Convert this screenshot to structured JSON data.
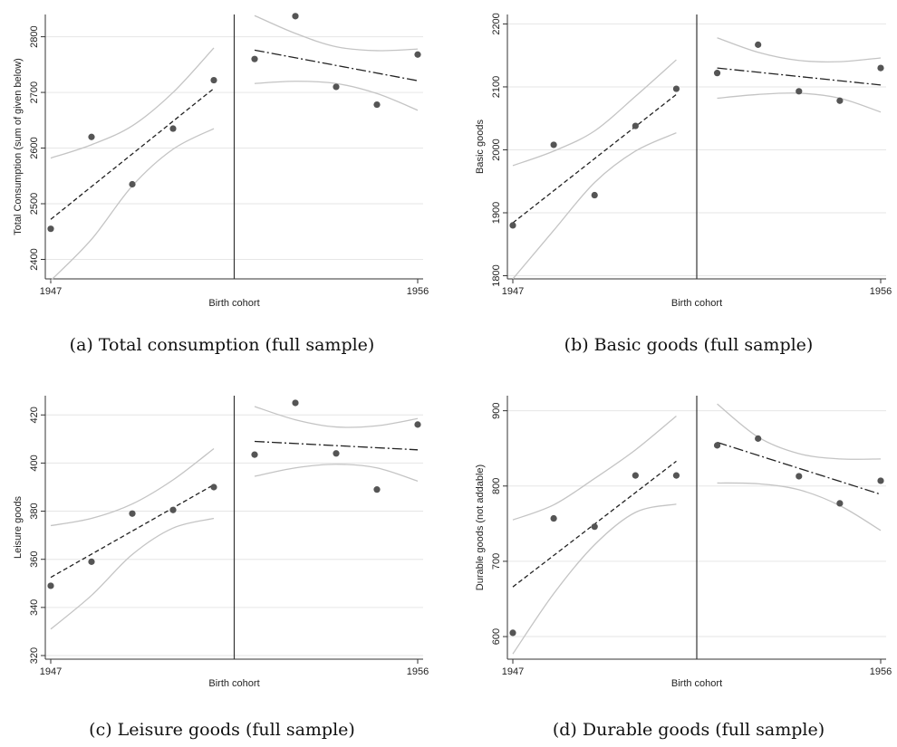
{
  "chart_data": [
    {
      "type": "scatter",
      "caption": "(a) Total consumption (full sample)",
      "xlabel": "Birth cohort",
      "ylabel": "Total Consumption (sum of given below)",
      "x_ticks": [
        1947,
        1956
      ],
      "y_ticks": [
        2400,
        2500,
        2600,
        2700,
        2800
      ],
      "xlim": [
        1947,
        1956
      ],
      "ylim": [
        2365,
        2840
      ],
      "cutoff": 1951.5,
      "grid": true,
      "points": {
        "x": [
          1947,
          1948,
          1949,
          1950,
          1951,
          1952,
          1953,
          1954,
          1955,
          1956
        ],
        "y": [
          2455,
          2620,
          2535,
          2635,
          2722,
          2760,
          2837,
          2710,
          2678,
          2768
        ]
      },
      "fit_left": {
        "x": [
          1947,
          1951
        ],
        "y": [
          2472,
          2707
        ]
      },
      "fit_right": {
        "x": [
          1952,
          1956
        ],
        "y": [
          2776,
          2721
        ]
      },
      "ci_left_upper": {
        "x": [
          1947,
          1948,
          1949,
          1950,
          1951
        ],
        "y": [
          2582,
          2606,
          2640,
          2700,
          2780
        ]
      },
      "ci_left_lower": {
        "x": [
          1947,
          1948,
          1949,
          1950,
          1951
        ],
        "y": [
          2362,
          2436,
          2532,
          2598,
          2635
        ]
      },
      "ci_right_upper": {
        "x": [
          1952,
          1953,
          1954,
          1955,
          1956
        ],
        "y": [
          2838,
          2806,
          2782,
          2775,
          2778
        ]
      },
      "ci_right_lower": {
        "x": [
          1952,
          1953,
          1954,
          1955,
          1956
        ],
        "y": [
          2716,
          2720,
          2716,
          2698,
          2668
        ]
      }
    },
    {
      "type": "scatter",
      "caption": "(b) Basic goods (full sample)",
      "xlabel": "Birth cohort",
      "ylabel": "Basic goods",
      "x_ticks": [
        1947,
        1956
      ],
      "y_ticks": [
        1800,
        1900,
        2000,
        2100,
        2200
      ],
      "xlim": [
        1947,
        1956
      ],
      "ylim": [
        1795,
        2215
      ],
      "cutoff": 1951.5,
      "grid": true,
      "points": {
        "x": [
          1947,
          1948,
          1949,
          1950,
          1951,
          1952,
          1953,
          1954,
          1955,
          1956
        ],
        "y": [
          1880,
          2008,
          1928,
          2038,
          2097,
          2122,
          2167,
          2093,
          2078,
          2130
        ]
      },
      "fit_left": {
        "x": [
          1947,
          1951
        ],
        "y": [
          1884,
          2088
        ]
      },
      "fit_right": {
        "x": [
          1952,
          1956
        ],
        "y": [
          2130,
          2103
        ]
      },
      "ci_left_upper": {
        "x": [
          1947,
          1948,
          1949,
          1950,
          1951
        ],
        "y": [
          1975,
          1998,
          2030,
          2085,
          2143
        ]
      },
      "ci_left_lower": {
        "x": [
          1947,
          1948,
          1949,
          1950,
          1951
        ],
        "y": [
          1795,
          1872,
          1948,
          1998,
          2027
        ]
      },
      "ci_right_upper": {
        "x": [
          1952,
          1953,
          1954,
          1955,
          1956
        ],
        "y": [
          2178,
          2155,
          2142,
          2140,
          2146
        ]
      },
      "ci_right_lower": {
        "x": [
          1952,
          1953,
          1954,
          1955,
          1956
        ],
        "y": [
          2082,
          2088,
          2090,
          2082,
          2060
        ]
      }
    },
    {
      "type": "scatter",
      "caption": "(c) Leisure goods (full sample)",
      "xlabel": "Birth cohort",
      "ylabel": "Leisure goods",
      "x_ticks": [
        1947,
        1956
      ],
      "y_ticks": [
        320,
        340,
        360,
        380,
        400,
        420
      ],
      "xlim": [
        1947,
        1956
      ],
      "ylim": [
        318.5,
        428
      ],
      "cutoff": 1951.5,
      "grid": true,
      "points": {
        "x": [
          1947,
          1948,
          1949,
          1950,
          1951,
          1952,
          1953,
          1954,
          1955,
          1956
        ],
        "y": [
          349,
          359,
          379,
          380.5,
          390,
          403.5,
          425,
          404,
          389,
          416
        ]
      },
      "fit_left": {
        "x": [
          1947,
          1951
        ],
        "y": [
          352.5,
          391
        ]
      },
      "fit_right": {
        "x": [
          1952,
          1956
        ],
        "y": [
          409,
          405.5
        ]
      },
      "ci_left_upper": {
        "x": [
          1947,
          1948,
          1949,
          1950,
          1951
        ],
        "y": [
          374,
          377,
          383,
          393,
          406
        ]
      },
      "ci_left_lower": {
        "x": [
          1947,
          1948,
          1949,
          1950,
          1951
        ],
        "y": [
          331,
          345,
          362,
          373,
          377
        ]
      },
      "ci_right_upper": {
        "x": [
          1952,
          1953,
          1954,
          1955,
          1956
        ],
        "y": [
          423.5,
          418,
          415,
          415.5,
          418.5
        ]
      },
      "ci_right_lower": {
        "x": [
          1952,
          1953,
          1954,
          1955,
          1956
        ],
        "y": [
          394.5,
          398,
          399.5,
          398,
          392.5
        ]
      }
    },
    {
      "type": "scatter",
      "caption": "(d) Durable goods (full sample)",
      "xlabel": "Birth cohort",
      "ylabel": "Durable goods (not addable)",
      "x_ticks": [
        1947,
        1956
      ],
      "y_ticks": [
        600,
        700,
        800,
        900
      ],
      "xlim": [
        1947,
        1956
      ],
      "ylim": [
        570,
        920
      ],
      "cutoff": 1951.5,
      "grid": true,
      "points": {
        "x": [
          1947,
          1948,
          1949,
          1950,
          1951,
          1952,
          1953,
          1954,
          1955,
          1956
        ],
        "y": [
          605,
          757,
          746,
          814,
          814,
          854,
          863,
          813,
          777,
          807
        ]
      },
      "fit_left": {
        "x": [
          1947,
          1951
        ],
        "y": [
          666,
          833
        ]
      },
      "fit_right": {
        "x": [
          1952,
          1956
        ],
        "y": [
          858,
          789
        ]
      },
      "ci_left_upper": {
        "x": [
          1947,
          1948,
          1949,
          1950,
          1951
        ],
        "y": [
          755,
          775,
          810,
          848,
          893
        ]
      },
      "ci_left_lower": {
        "x": [
          1947,
          1948,
          1949,
          1950,
          1951
        ],
        "y": [
          577,
          657,
          722,
          765,
          776
        ]
      },
      "ci_right_upper": {
        "x": [
          1952,
          1953,
          1954,
          1955,
          1956
        ],
        "y": [
          909,
          865,
          843,
          836,
          836
        ]
      },
      "ci_right_lower": {
        "x": [
          1952,
          1953,
          1954,
          1955,
          1956
        ],
        "y": [
          804,
          803,
          795,
          774,
          741
        ]
      }
    }
  ]
}
